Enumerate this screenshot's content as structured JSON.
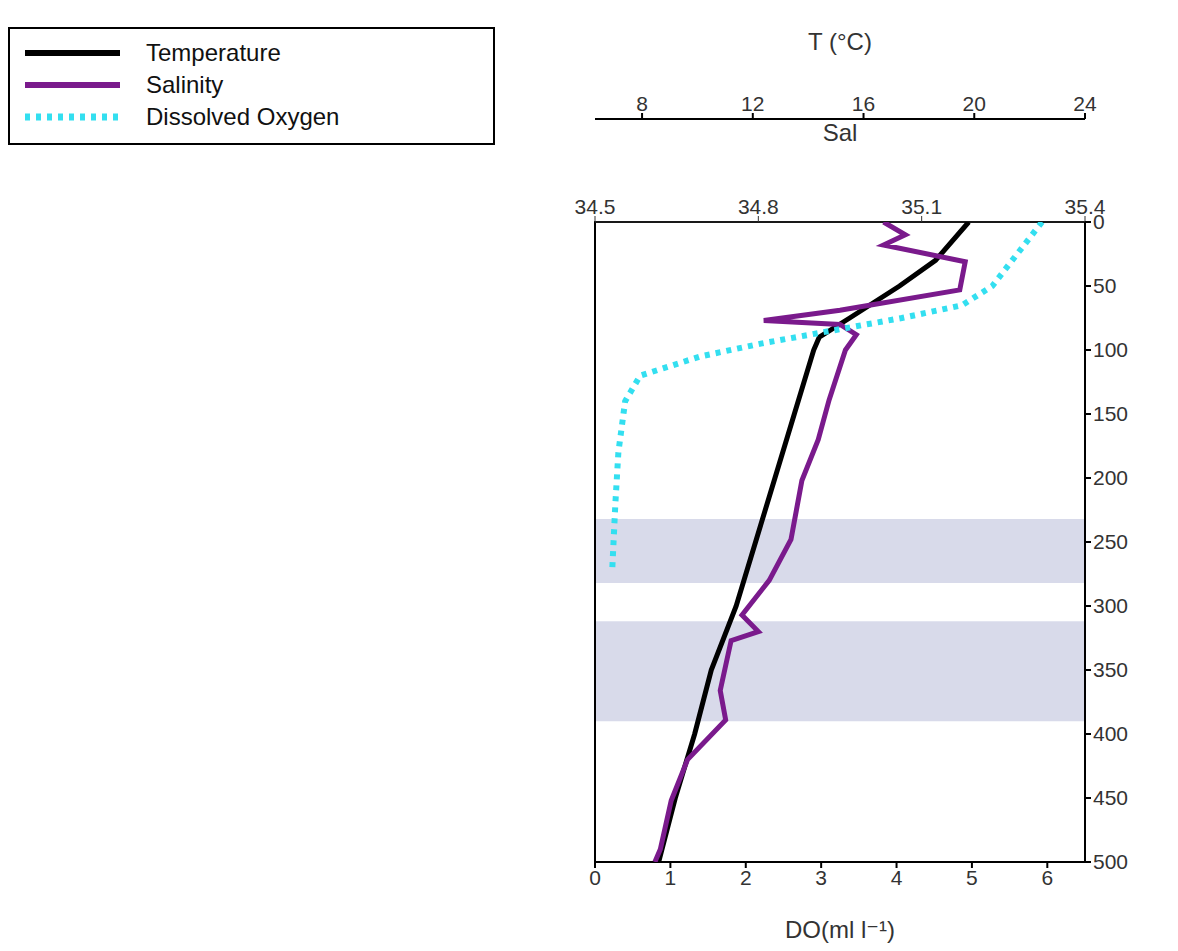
{
  "chart_data": {
    "type": "line",
    "legend": "top left",
    "grid": false,
    "x_label": "DO(ml l⁻¹)",
    "xlim": [
      0,
      6.5
    ],
    "xticks": [
      0,
      1,
      2,
      3,
      4,
      5,
      6
    ],
    "x2_label": "T (°C)",
    "x2lim": [
      6.3,
      24
    ],
    "x2ticks": [
      8,
      12,
      16,
      20,
      24
    ],
    "x3_label": "Sal",
    "x3lim": [
      34.5,
      35.4
    ],
    "x3ticks": [
      34.5,
      34.8,
      35.1,
      35.4
    ],
    "ylim": [
      0,
      500
    ],
    "yticks": [
      0,
      50,
      100,
      150,
      200,
      250,
      300,
      350,
      400,
      450,
      500
    ],
    "scattering_layers": [
      {
        "top": 232,
        "bottom": 282
      },
      {
        "top": 312,
        "bottom": 390
      }
    ],
    "series": [
      {
        "name": "Temperature",
        "color": "#000000",
        "axis": "x2",
        "line_style": "solid",
        "values": [
          19.8,
          18.6,
          17.3,
          15.5,
          14.4,
          14.2,
          13.5,
          12.8,
          12.1,
          11.4,
          10.5,
          9.9,
          9.2,
          8.6
        ],
        "depth": [
          0,
          30,
          50,
          75,
          90,
          100,
          150,
          200,
          250,
          300,
          350,
          400,
          450,
          500
        ]
      },
      {
        "name": "Salinity",
        "color": "#7a1a8c",
        "axis": "x3",
        "line_style": "solid",
        "values": [
          35.03,
          35.07,
          35.03,
          35.18,
          35.17,
          34.95,
          34.81,
          34.95,
          34.98,
          34.96,
          34.93,
          34.91,
          34.88,
          34.87,
          34.86,
          34.82,
          34.77,
          34.8,
          34.75,
          34.73,
          34.74,
          34.67,
          34.64,
          34.62,
          34.61
        ],
        "depth": [
          0,
          10,
          18,
          31,
          53,
          69,
          77,
          80,
          88,
          100,
          139,
          170,
          202,
          225,
          248,
          280,
          307,
          320,
          327,
          366,
          389,
          420,
          452,
          490,
          500
        ]
      },
      {
        "name": "Dissolved Oxygen",
        "color": "#33dff0",
        "axis": "x",
        "line_style": "dotted",
        "values": [
          5.93,
          5.6,
          5.27,
          4.87,
          4.07,
          3.13,
          2.2,
          1.4,
          0.6,
          0.4,
          0.31,
          0.27,
          0.23
        ],
        "depth": [
          0,
          25,
          50,
          65,
          75,
          85,
          95,
          105,
          120,
          140,
          180,
          220,
          270
        ]
      }
    ]
  }
}
